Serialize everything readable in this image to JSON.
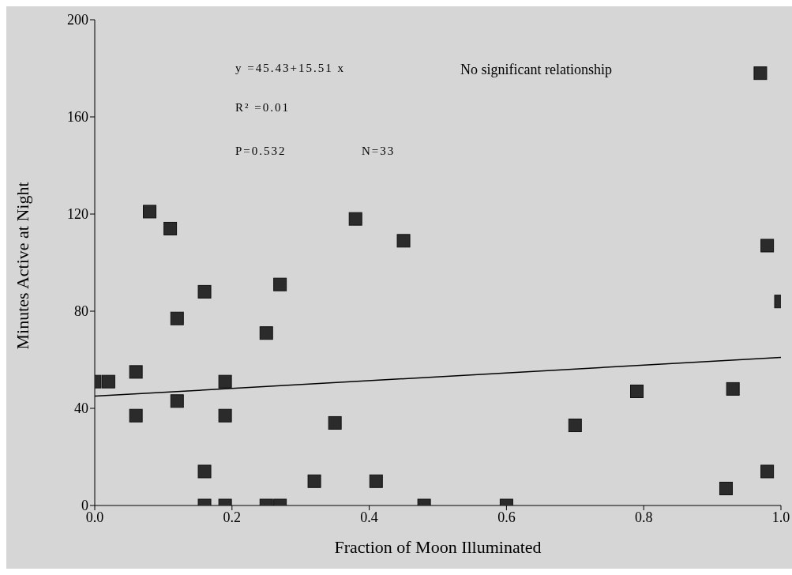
{
  "chart_data": {
    "type": "scatter",
    "xlabel": "Fraction of Moon Illuminated",
    "ylabel": "Minutes Active at Night",
    "xlim": [
      0,
      1
    ],
    "xticks": [
      {
        "value": 0,
        "label": "0.0"
      },
      0.2,
      0.4,
      0.6,
      0.8,
      {
        "value": 1,
        "label": "1.0"
      }
    ],
    "ylim": [
      0,
      200
    ],
    "yticks": [
      0,
      40,
      80,
      120,
      160,
      200
    ],
    "annotations": [
      "y =45.43+15.51 x",
      "R² =0.01",
      "P=0.532",
      "N=33",
      "No significant relationship"
    ],
    "series": [
      {
        "marker": "square",
        "color": "#2b2b2b",
        "x": [
          0,
          0.02,
          0.06,
          0.06,
          0.08,
          0.11,
          0.12,
          0.12,
          0.16,
          0.16,
          0.16,
          0.19,
          0.19,
          0.19,
          0.25,
          0.25,
          0.27,
          0.27,
          0.32,
          0.35,
          0.38,
          0.41,
          0.45,
          0.48,
          0.6,
          0.7,
          0.79,
          0.92,
          0.93,
          0.97,
          0.98,
          0.98,
          1.0
        ],
        "values": [
          51,
          51,
          55,
          37,
          121,
          114,
          77,
          43,
          88,
          14,
          0,
          51,
          37,
          0,
          71,
          0,
          91,
          0,
          10,
          34,
          118,
          10,
          109,
          0,
          0,
          33,
          47,
          7,
          48,
          178,
          107,
          14,
          84
        ]
      },
      {
        "type": "line",
        "marker": "none",
        "color": "#000000",
        "line_style": "solid",
        "x": [
          0,
          1
        ],
        "values": [
          45,
          61
        ]
      }
    ]
  }
}
